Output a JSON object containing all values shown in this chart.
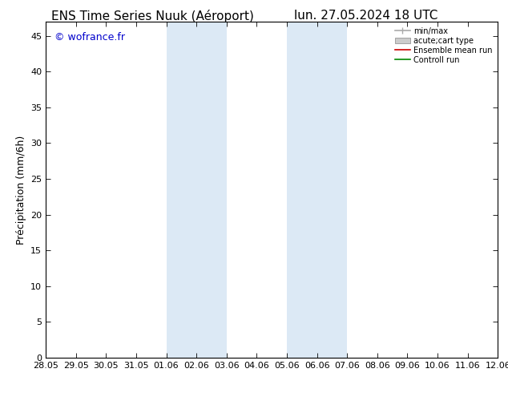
{
  "title_left": "ENS Time Series Nuuk (Aéroport)",
  "title_right": "lun. 27.05.2024 18 UTC",
  "ylabel": "Precipitation (mm/6h)",
  "ylabel_display": "Précipitation (mm/6h)",
  "watermark": "© wofrance.fr",
  "xticklabels": [
    "28.05",
    "29.05",
    "30.05",
    "31.05",
    "01.06",
    "02.06",
    "03.06",
    "04.06",
    "05.06",
    "06.06",
    "07.06",
    "08.06",
    "09.06",
    "10.06",
    "11.06",
    "12.06"
  ],
  "yticks": [
    0,
    5,
    10,
    15,
    20,
    25,
    30,
    35,
    40,
    45
  ],
  "ylim": [
    0,
    47
  ],
  "xlim": [
    0,
    15
  ],
  "shaded_regions": [
    {
      "xmin": 4,
      "xmax": 6,
      "color": "#dce9f5"
    },
    {
      "xmin": 8,
      "xmax": 10,
      "color": "#dce9f5"
    }
  ],
  "legend_entries": [
    {
      "label": "min/max",
      "color": "#aaaaaa",
      "lw": 1.2,
      "style": "line_with_ticks"
    },
    {
      "label": "acute;cart type",
      "color": "#cccccc",
      "lw": 6,
      "style": "thick_line"
    },
    {
      "label": "Ensemble mean run",
      "color": "#cc0000",
      "lw": 1.2,
      "style": "line"
    },
    {
      "label": "Controll run",
      "color": "#008800",
      "lw": 1.2,
      "style": "line"
    }
  ],
  "bg_color": "#ffffff",
  "plot_bg_color": "#ffffff",
  "border_color": "#000000",
  "tick_color": "#000000",
  "watermark_color": "#0000cc",
  "title_fontsize": 11,
  "ylabel_fontsize": 9,
  "tick_fontsize": 8,
  "watermark_fontsize": 9
}
